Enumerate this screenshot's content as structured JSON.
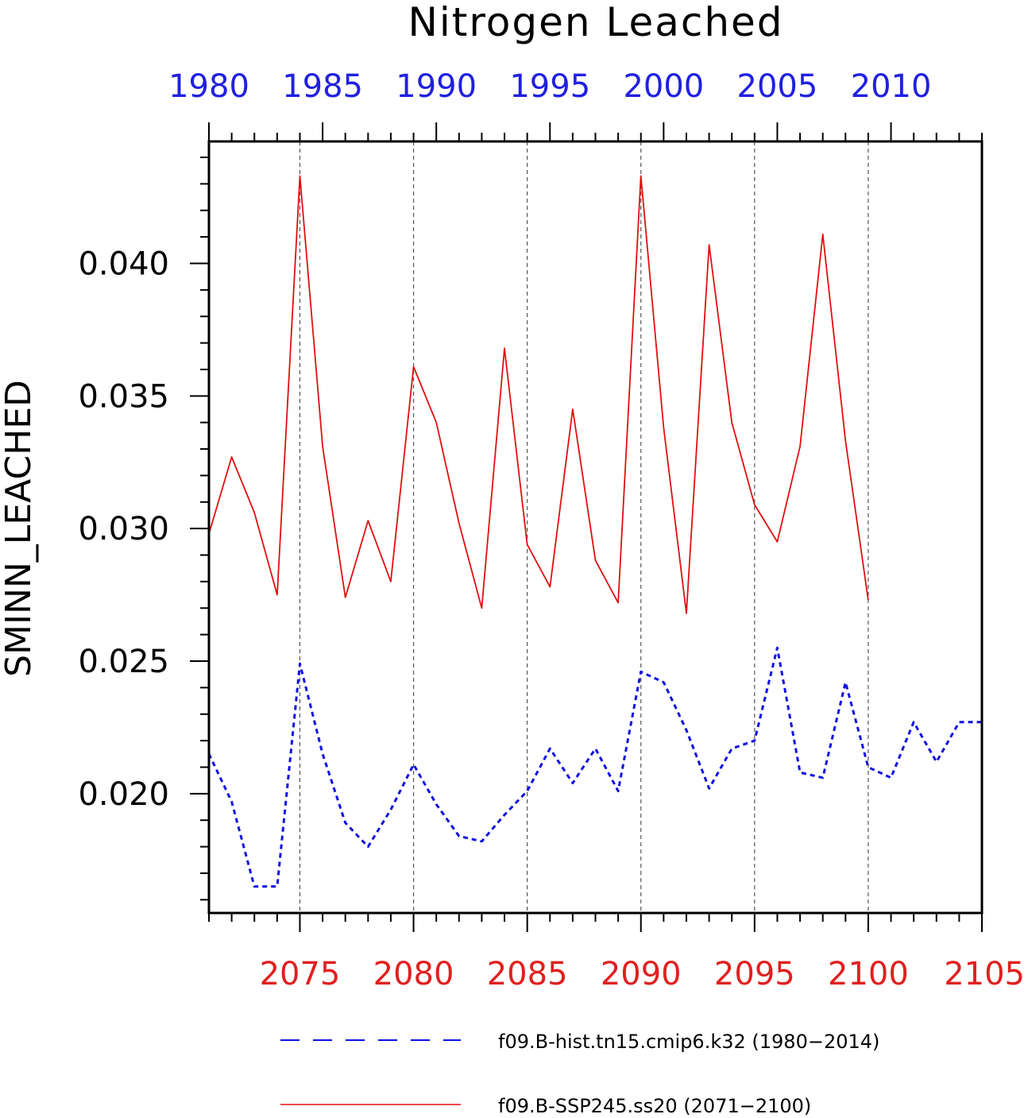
{
  "chart_data": {
    "type": "line",
    "title": "Nitrogen Leached",
    "ylabel": "SMINN_LEACHED",
    "ylim": [
      0.0155,
      0.0446
    ],
    "yticks": [
      "0.020",
      "0.025",
      "0.030",
      "0.035",
      "0.040"
    ],
    "ytick_values": [
      0.02,
      0.025,
      0.03,
      0.035,
      0.04
    ],
    "top_axis": {
      "color": "#2020e0",
      "range": [
        1980,
        2014
      ],
      "ticks": [
        "1980",
        "1985",
        "1990",
        "1995",
        "2000",
        "2005",
        "2010"
      ],
      "tick_values": [
        1980,
        1985,
        1990,
        1995,
        2000,
        2005,
        2010
      ]
    },
    "bottom_axis": {
      "color": "#e02020",
      "range": [
        2071,
        2105
      ],
      "ticks": [
        "2075",
        "2080",
        "2085",
        "2090",
        "2095",
        "2100",
        "2105"
      ],
      "tick_values": [
        2075,
        2080,
        2085,
        2090,
        2095,
        2100,
        2105
      ]
    },
    "vertical_gridlines": true,
    "series": [
      {
        "name": "f09.B-hist.tn15.cmip6.k32 (1980−2014)",
        "color": "#1010e0",
        "style": "dashed",
        "axis": "top",
        "x": [
          1980,
          1981,
          1982,
          1983,
          1984,
          1985,
          1986,
          1987,
          1988,
          1989,
          1990,
          1991,
          1992,
          1993,
          1994,
          1995,
          1996,
          1997,
          1998,
          1999,
          2000,
          2001,
          2002,
          2003,
          2004,
          2005,
          2006,
          2007,
          2008,
          2009,
          2010,
          2011,
          2012,
          2013,
          2014
        ],
        "values": [
          0.0215,
          0.0197,
          0.0165,
          0.0165,
          0.0249,
          0.0215,
          0.0189,
          0.018,
          0.0194,
          0.0211,
          0.0196,
          0.0184,
          0.0182,
          0.0192,
          0.0201,
          0.0217,
          0.0204,
          0.0217,
          0.0201,
          0.0246,
          0.0242,
          0.0224,
          0.0202,
          0.0217,
          0.022,
          0.0255,
          0.0208,
          0.0206,
          0.0242,
          0.021,
          0.0206,
          0.0227,
          0.0212,
          0.0227,
          0.0227
        ]
      },
      {
        "name": "f09.B-SSP245.ss20 (2071−2100)",
        "color": "#e01010",
        "style": "solid",
        "axis": "bottom",
        "x": [
          2071,
          2072,
          2073,
          2074,
          2075,
          2076,
          2077,
          2078,
          2079,
          2080,
          2081,
          2082,
          2083,
          2084,
          2085,
          2086,
          2087,
          2088,
          2089,
          2090,
          2091,
          2092,
          2093,
          2094,
          2095,
          2096,
          2097,
          2098,
          2099,
          2100
        ],
        "values": [
          0.0298,
          0.0327,
          0.0306,
          0.0275,
          0.0433,
          0.0331,
          0.0274,
          0.0303,
          0.028,
          0.0361,
          0.034,
          0.0302,
          0.027,
          0.0368,
          0.0294,
          0.0278,
          0.0345,
          0.0288,
          0.0272,
          0.0433,
          0.0338,
          0.0268,
          0.0407,
          0.034,
          0.0309,
          0.0295,
          0.0331,
          0.0411,
          0.0333,
          0.0273
        ]
      }
    ],
    "legend_position": "bottom"
  }
}
